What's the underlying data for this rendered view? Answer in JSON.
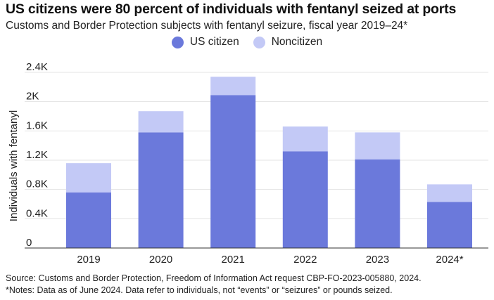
{
  "title": "US citizens were 80 percent of individuals with fentanyl seized at ports",
  "subtitle": "Customs and Border Protection subjects with fentanyl seizure, fiscal year 2019–24*",
  "legend": [
    {
      "label": "US citizen",
      "color": "#6b79db"
    },
    {
      "label": "Noncitizen",
      "color": "#c3c9f6"
    }
  ],
  "footer": {
    "source": "Source: Customs and Border Protection, Freedom of Information Act request CBP-FO-2023-005880, 2024.",
    "notes": "*Notes: Data as of June 2024. Data refer to individuals, not “events” or “seizures” or pounds seized."
  },
  "chart_data": {
    "type": "bar",
    "stacked": true,
    "title": "US citizens were 80 percent of individuals with fentanyl seized at ports",
    "subtitle": "Customs and Border Protection subjects with fentanyl seizure, fiscal year 2019–24*",
    "xlabel": "",
    "ylabel": "Individuals with fentanyl",
    "categories": [
      "2019",
      "2020",
      "2021",
      "2022",
      "2023",
      "2024*"
    ],
    "series": [
      {
        "name": "US citizen",
        "color": "#6b79db",
        "values": [
          760,
          1580,
          2090,
          1320,
          1210,
          630
        ]
      },
      {
        "name": "Noncitizen",
        "color": "#c3c9f6",
        "values": [
          400,
          290,
          250,
          340,
          370,
          240
        ]
      }
    ],
    "ylim": [
      0,
      2400
    ],
    "yticks": [
      0,
      400,
      800,
      1200,
      1600,
      2000,
      2400
    ],
    "ytick_labels": [
      "0",
      "0.4K",
      "0.8K",
      "1.2K",
      "1.6K",
      "2K",
      "2.4K"
    ],
    "grid": true,
    "legend_position": "top-center"
  }
}
